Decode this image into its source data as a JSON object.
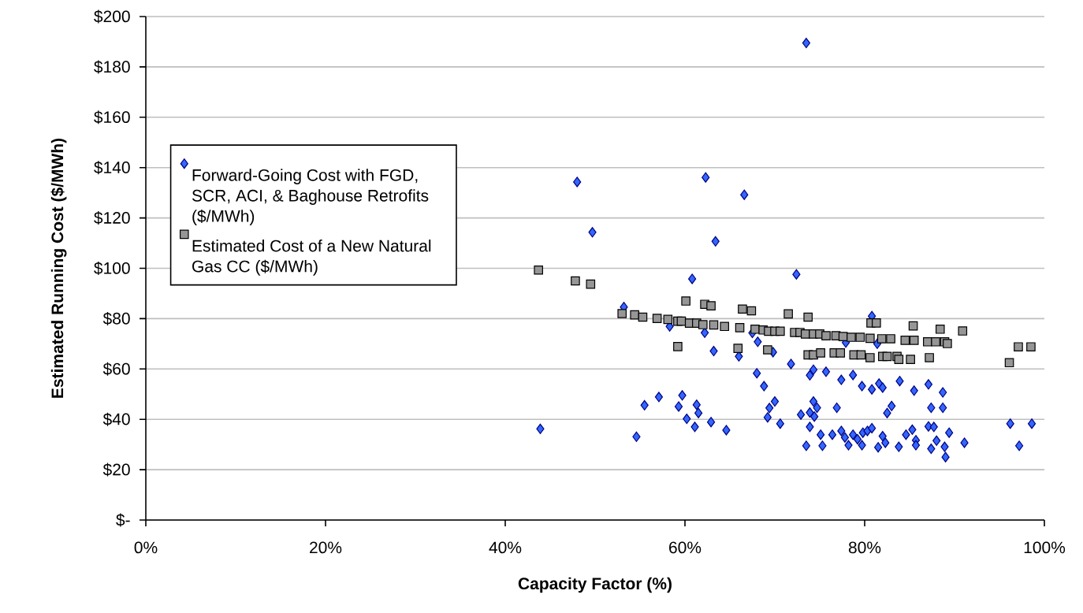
{
  "chart_data": {
    "type": "scatter",
    "xlabel": "Capacity Factor (%)",
    "ylabel": "Estimated Running Cost ($/MWh)",
    "xlim": [
      0,
      100
    ],
    "ylim": [
      0,
      200
    ],
    "xticks": [
      {
        "value": 0,
        "label": "0%"
      },
      {
        "value": 20,
        "label": "20%"
      },
      {
        "value": 40,
        "label": "40%"
      },
      {
        "value": 60,
        "label": "60%"
      },
      {
        "value": 80,
        "label": "80%"
      },
      {
        "value": 100,
        "label": "100%"
      }
    ],
    "yticks": [
      {
        "value": 0,
        "label": "$-"
      },
      {
        "value": 20,
        "label": "$20"
      },
      {
        "value": 40,
        "label": "$40"
      },
      {
        "value": 60,
        "label": "$60"
      },
      {
        "value": 80,
        "label": "$80"
      },
      {
        "value": 100,
        "label": "$100"
      },
      {
        "value": 120,
        "label": "$120"
      },
      {
        "value": 140,
        "label": "$140"
      },
      {
        "value": 160,
        "label": "$160"
      },
      {
        "value": 180,
        "label": "$180"
      },
      {
        "value": 200,
        "label": "$200"
      }
    ],
    "grid": "y",
    "legend": "top left",
    "series": [
      {
        "name": "Forward-Going Cost with FGD, SCR, ACI, & Baghouse Retrofits ($/MWh)",
        "color": "#3366ff",
        "marker": "diamond",
        "x": [
          43.9,
          54.6,
          55.5,
          57.1,
          53.2,
          58.3,
          59.3,
          59.7,
          60.2,
          60.8,
          61.1,
          61.3,
          61.5,
          62.2,
          62.9,
          63.2,
          63.4,
          64.6,
          66.0,
          67.5,
          68.1,
          68.0,
          68.8,
          69.8,
          70.0,
          69.4,
          69.2,
          70.6,
          48.0,
          49.7,
          62.3,
          66.6,
          73.5,
          72.4,
          80.8,
          77.9,
          81.4,
          71.8,
          74.3,
          73.9,
          75.7,
          77.4,
          78.7,
          79.7,
          80.8,
          81.6,
          82.0,
          83.9,
          85.5,
          87.1,
          88.7,
          74.3,
          74.7,
          73.9,
          74.4,
          72.9,
          76.9,
          83.0,
          82.5,
          87.4,
          88.7,
          73.9,
          75.1,
          76.4,
          77.4,
          77.8,
          78.7,
          79.2,
          79.8,
          80.3,
          80.8,
          82.0,
          82.3,
          81.5,
          79.7,
          78.2,
          75.3,
          73.5,
          83.8,
          84.6,
          85.3,
          85.7,
          85.7,
          87.1,
          87.7,
          87.4,
          88.0,
          88.9,
          89.0,
          89.4,
          91.1,
          96.2,
          98.6,
          97.2
        ],
        "values": [
          36.2,
          33.1,
          45.6,
          48.9,
          84.6,
          76.9,
          45.1,
          49.5,
          40.2,
          95.8,
          37.0,
          45.8,
          42.5,
          74.4,
          38.9,
          67.1,
          110.7,
          35.7,
          65.0,
          74.3,
          70.8,
          58.3,
          53.2,
          66.7,
          47.1,
          44.5,
          40.8,
          38.3,
          134.3,
          114.3,
          136.1,
          129.2,
          189.5,
          97.6,
          81.0,
          70.5,
          70.0,
          62.0,
          59.7,
          57.5,
          58.9,
          55.7,
          57.6,
          53.2,
          51.9,
          54.2,
          52.6,
          55.2,
          51.4,
          53.9,
          50.7,
          47.1,
          44.6,
          42.7,
          41.1,
          41.9,
          44.6,
          45.3,
          42.5,
          44.6,
          44.6,
          37.0,
          33.9,
          33.9,
          35.4,
          32.8,
          33.9,
          32.1,
          34.7,
          35.4,
          36.5,
          33.3,
          30.7,
          28.9,
          29.7,
          29.7,
          29.5,
          29.5,
          29.1,
          33.9,
          35.9,
          31.7,
          29.7,
          37.2,
          37.0,
          28.3,
          31.5,
          29.1,
          25.0,
          34.7,
          30.7,
          38.3,
          38.3,
          29.5
        ]
      },
      {
        "name": "Estimated Cost of a New Natural Gas CC ($/MWh)",
        "color": "#969696",
        "marker": "square",
        "x": [
          43.7,
          47.8,
          49.5,
          53.0,
          54.4,
          55.3,
          56.9,
          58.1,
          59.2,
          59.2,
          59.6,
          60.1,
          60.5,
          61.3,
          62.0,
          62.2,
          62.9,
          63.2,
          64.4,
          65.9,
          66.1,
          66.4,
          67.4,
          67.8,
          68.7,
          69.2,
          69.3,
          70.0,
          70.6,
          71.5,
          73.7,
          72.2,
          72.8,
          73.4,
          74.3,
          75.0,
          75.7,
          76.8,
          77.6,
          78.5,
          79.5,
          80.6,
          80.7,
          81.3,
          81.9,
          82.9,
          84.5,
          85.4,
          85.5,
          87.0,
          87.9,
          88.4,
          88.9,
          89.2,
          90.9,
          73.7,
          74.3,
          75.1,
          76.6,
          77.3,
          78.8,
          79.6,
          80.6,
          82.0,
          82.5,
          83.6,
          83.8,
          85.1,
          87.2,
          96.1,
          97.1,
          98.5
        ],
        "values": [
          99.3,
          95.0,
          93.7,
          82.0,
          81.5,
          80.6,
          80.1,
          79.7,
          68.9,
          79.0,
          79.0,
          87.0,
          78.2,
          78.2,
          77.6,
          85.7,
          85.1,
          77.5,
          76.9,
          68.2,
          76.4,
          83.8,
          83.1,
          75.8,
          75.5,
          67.6,
          75.0,
          75.0,
          75.0,
          81.9,
          80.6,
          74.5,
          74.5,
          73.9,
          73.9,
          73.9,
          73.2,
          73.2,
          72.9,
          72.6,
          72.6,
          72.2,
          78.3,
          78.3,
          72.0,
          72.0,
          71.4,
          77.1,
          71.4,
          70.8,
          70.8,
          75.8,
          70.8,
          70.1,
          75.1,
          65.6,
          65.6,
          66.4,
          66.4,
          66.4,
          65.6,
          65.6,
          64.5,
          65.0,
          65.0,
          65.0,
          63.8,
          63.8,
          64.5,
          62.5,
          68.8,
          68.8
        ]
      }
    ]
  }
}
